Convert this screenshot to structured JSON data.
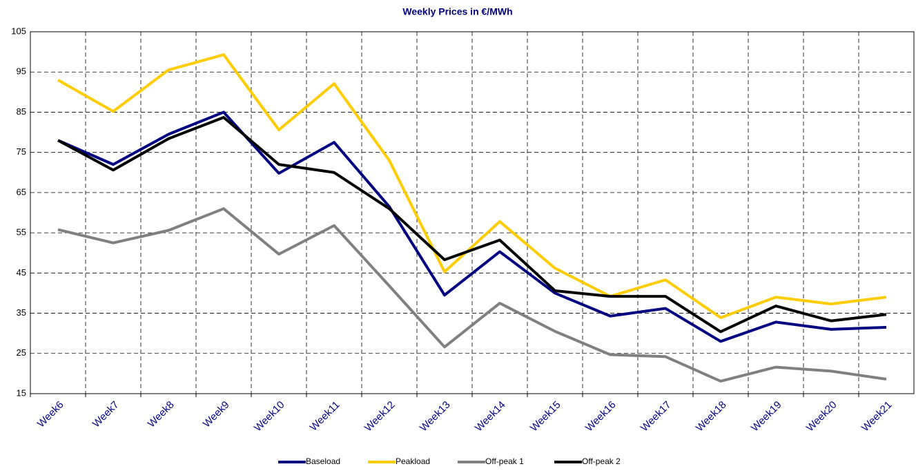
{
  "chart_data": {
    "type": "line",
    "title": "Weekly Prices in €/MWh",
    "categories": [
      "Week6",
      "Week7",
      "Week8",
      "Week9",
      "Week10",
      "Week11",
      "Week12",
      "Week13",
      "Week14",
      "Week15",
      "Week16",
      "Week17",
      "Week18",
      "Week19",
      "Week20",
      "Week21"
    ],
    "series": [
      {
        "name": "Baseload",
        "color": "#000080",
        "values": [
          78,
          72,
          79.5,
          85,
          69.8,
          77.5,
          61.5,
          39.5,
          50.3,
          40,
          34.3,
          36.2,
          28,
          32.8,
          31,
          31.5
        ]
      },
      {
        "name": "Peakload",
        "color": "#ffcc00",
        "values": [
          93,
          85.2,
          95.5,
          99.3,
          80.6,
          92.1,
          73,
          45.3,
          57.8,
          46.2,
          39.2,
          43.3,
          33.9,
          39,
          37.3,
          39
        ]
      },
      {
        "name": "Off-peak 1",
        "color": "#808080",
        "values": [
          55.8,
          52.5,
          55.6,
          61,
          49.7,
          56.8,
          41.8,
          26.6,
          37.5,
          30.5,
          24.7,
          24.2,
          18.1,
          21.6,
          20.6,
          18.6
        ]
      },
      {
        "name": "Off-peak 2",
        "color": "#000000",
        "values": [
          78,
          70.6,
          78.4,
          83.7,
          72,
          70,
          61,
          48.3,
          53.2,
          40.6,
          39.2,
          39.2,
          30.4,
          36.8,
          33.1,
          34.7
        ]
      }
    ],
    "ylim": [
      15,
      105
    ],
    "yticks": [
      15,
      25,
      35,
      45,
      55,
      65,
      75,
      85,
      95,
      105
    ],
    "grid": true
  }
}
